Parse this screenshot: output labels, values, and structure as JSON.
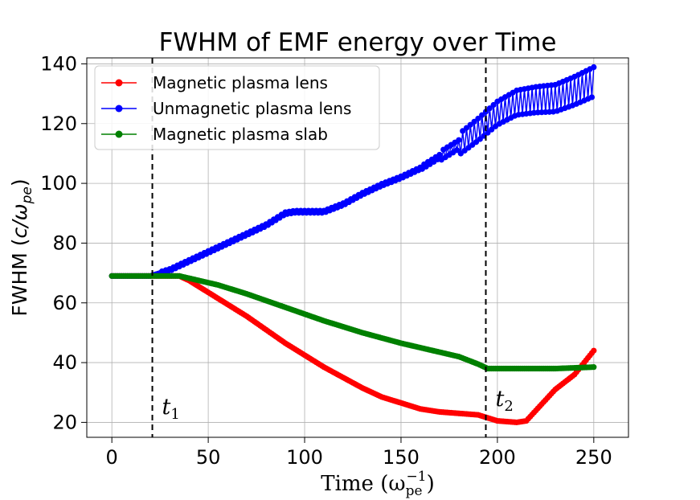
{
  "chart_data": {
    "type": "line",
    "title": "FWHM of EMF energy over Time",
    "xlabel": "Time (ω",
    "xlabel_sub": "pe",
    "xlabel_sup": "−1",
    "xlabel_close": ")",
    "ylabel": "FWHM (",
    "ylabel_math": "c/ω",
    "ylabel_sub": "pe",
    "ylabel_close": ")",
    "xlim": [
      -13,
      268
    ],
    "ylim": [
      15,
      142
    ],
    "xticks": [
      0,
      50,
      100,
      150,
      200,
      250
    ],
    "yticks": [
      20,
      40,
      60,
      80,
      100,
      120,
      140
    ],
    "grid": true,
    "legend_position": "top-left",
    "vlines": [
      {
        "x": 21,
        "label": "t",
        "label_sub": "1"
      },
      {
        "x": 194,
        "label": "t",
        "label_sub": "2"
      }
    ],
    "series": [
      {
        "name": "Magnetic plasma lens",
        "color": "#ff0000",
        "points": [
          [
            0,
            69
          ],
          [
            35,
            69
          ],
          [
            40,
            67.5
          ],
          [
            50,
            63.5
          ],
          [
            60,
            59.5
          ],
          [
            70,
            55.5
          ],
          [
            80,
            51
          ],
          [
            90,
            46.5
          ],
          [
            100,
            42.5
          ],
          [
            110,
            38.5
          ],
          [
            120,
            35
          ],
          [
            130,
            31.5
          ],
          [
            140,
            28.5
          ],
          [
            150,
            26.5
          ],
          [
            160,
            24.5
          ],
          [
            170,
            23.5
          ],
          [
            180,
            23
          ],
          [
            190,
            22.5
          ],
          [
            195,
            21.5
          ],
          [
            200,
            20.5
          ],
          [
            210,
            20
          ],
          [
            215,
            20.5
          ],
          [
            220,
            24
          ],
          [
            230,
            31
          ],
          [
            240,
            36
          ],
          [
            250,
            44
          ]
        ]
      },
      {
        "name": "Unmagnetic plasma lens",
        "color": "#0000ff",
        "points": [
          [
            0,
            69
          ],
          [
            20,
            69
          ],
          [
            30,
            71
          ],
          [
            40,
            74
          ],
          [
            50,
            77
          ],
          [
            60,
            80
          ],
          [
            70,
            83
          ],
          [
            80,
            86
          ],
          [
            90,
            90
          ],
          [
            95,
            90.5
          ],
          [
            110,
            90.5
          ],
          [
            120,
            93
          ],
          [
            130,
            96.5
          ],
          [
            140,
            99.5
          ],
          [
            150,
            102
          ],
          [
            160,
            105
          ],
          [
            170,
            109
          ],
          [
            180,
            113
          ],
          [
            190,
            118
          ],
          [
            200,
            123.5
          ],
          [
            210,
            127
          ],
          [
            220,
            128
          ],
          [
            230,
            128.5
          ],
          [
            240,
            131
          ],
          [
            250,
            134
          ]
        ]
      },
      {
        "name": "Magnetic plasma slab",
        "color": "#008000",
        "points": [
          [
            0,
            69
          ],
          [
            35,
            69
          ],
          [
            45,
            67.5
          ],
          [
            55,
            66
          ],
          [
            70,
            63
          ],
          [
            90,
            58.5
          ],
          [
            110,
            54
          ],
          [
            130,
            50
          ],
          [
            150,
            46.5
          ],
          [
            170,
            43.5
          ],
          [
            180,
            42
          ],
          [
            190,
            39.5
          ],
          [
            195,
            38
          ],
          [
            210,
            38
          ],
          [
            230,
            38
          ],
          [
            250,
            38.5
          ]
        ]
      }
    ]
  }
}
